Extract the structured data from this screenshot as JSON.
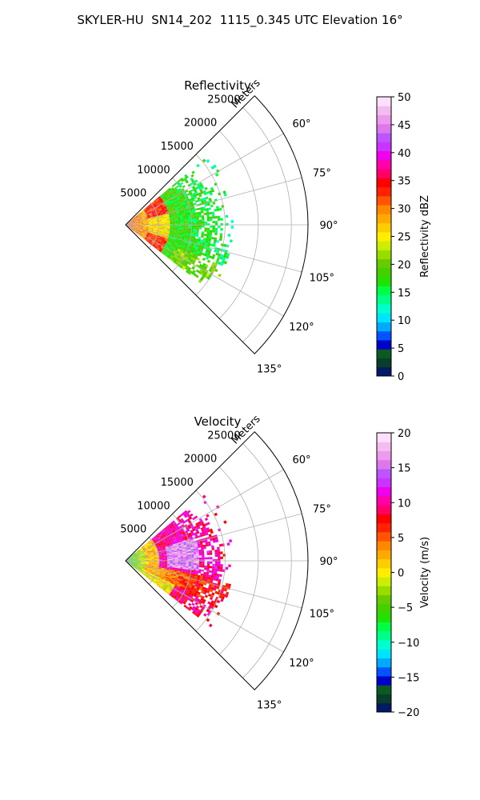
{
  "suptitle": "SKYLER-HU  SN14_202  1115_0.345 UTC Elevation 16°",
  "chart_data": [
    {
      "type": "heatmap",
      "subtype": "radar-ppi-sector",
      "title": "Reflectivity",
      "range_label": "Meters",
      "azimuth_range_deg": [
        45,
        135
      ],
      "range_max_m": 27500,
      "range_ticks": [
        5000,
        10000,
        15000,
        20000,
        25000
      ],
      "azimuth_ticks": [
        "60°",
        "75°",
        "90°",
        "105°",
        "120°",
        "135°"
      ],
      "azimuth_tick_values": [
        60,
        75,
        90,
        105,
        120,
        135
      ],
      "grid": true,
      "colorbar": {
        "label": "Reflectivity dBZ",
        "min": 0,
        "max": 50,
        "ticks": [
          "0",
          "5",
          "10",
          "15",
          "20",
          "25",
          "30",
          "35",
          "40",
          "45",
          "50"
        ],
        "colors": [
          "#001a66",
          "#0a3d2a",
          "#0c5a1f",
          "#0000cc",
          "#0055ff",
          "#00aaff",
          "#00e5ff",
          "#00ffcc",
          "#00ff88",
          "#00ff44",
          "#22e000",
          "#44d000",
          "#66cc00",
          "#99dd00",
          "#ccee00",
          "#ffee00",
          "#ffcc00",
          "#ffaa00",
          "#ff8800",
          "#ff5500",
          "#ff2200",
          "#ff0000",
          "#ff0066",
          "#ff00aa",
          "#ee00ee",
          "#cc33ff",
          "#bb55ff",
          "#dd77ee",
          "#ee99ee",
          "#f4bbf0",
          "#fde0fb"
        ]
      },
      "echo_region": {
        "azimuth_extent_deg": [
          50,
          128
        ],
        "range_extent_m": [
          0,
          16000
        ],
        "dominant_value": 17,
        "near_range_value": 30
      }
    },
    {
      "type": "heatmap",
      "subtype": "radar-ppi-sector",
      "title": "Velocity",
      "range_label": "Meters",
      "azimuth_range_deg": [
        45,
        135
      ],
      "range_max_m": 27500,
      "range_ticks": [
        5000,
        10000,
        15000,
        20000,
        25000
      ],
      "azimuth_ticks": [
        "60°",
        "75°",
        "90°",
        "105°",
        "120°",
        "135°"
      ],
      "azimuth_tick_values": [
        60,
        75,
        90,
        105,
        120,
        135
      ],
      "grid": true,
      "colorbar": {
        "label": "Velocity (m/s)",
        "min": -20,
        "max": 20,
        "ticks": [
          "−20",
          "−15",
          "−10",
          "−5",
          "0",
          "5",
          "10",
          "15",
          "20"
        ],
        "colors": [
          "#001a66",
          "#0a3d2a",
          "#0c5a1f",
          "#0000cc",
          "#0055ff",
          "#00aaff",
          "#00e5ff",
          "#00ffcc",
          "#00ff88",
          "#00ff44",
          "#22e000",
          "#44d000",
          "#66cc00",
          "#99dd00",
          "#ccee00",
          "#ffee00",
          "#ffcc00",
          "#ffaa00",
          "#ff8800",
          "#ff5500",
          "#ff2200",
          "#ff0000",
          "#ff0066",
          "#ff00aa",
          "#ee00ee",
          "#cc33ff",
          "#bb55ff",
          "#dd77ee",
          "#ee99ee",
          "#f4bbf0",
          "#fde0fb"
        ]
      },
      "echo_region": {
        "azimuth_extent_deg": [
          50,
          128
        ],
        "range_extent_m": [
          0,
          16000
        ],
        "north_value": 10,
        "core_value": 15,
        "south_value": 1,
        "near_range_value": -7
      }
    }
  ]
}
